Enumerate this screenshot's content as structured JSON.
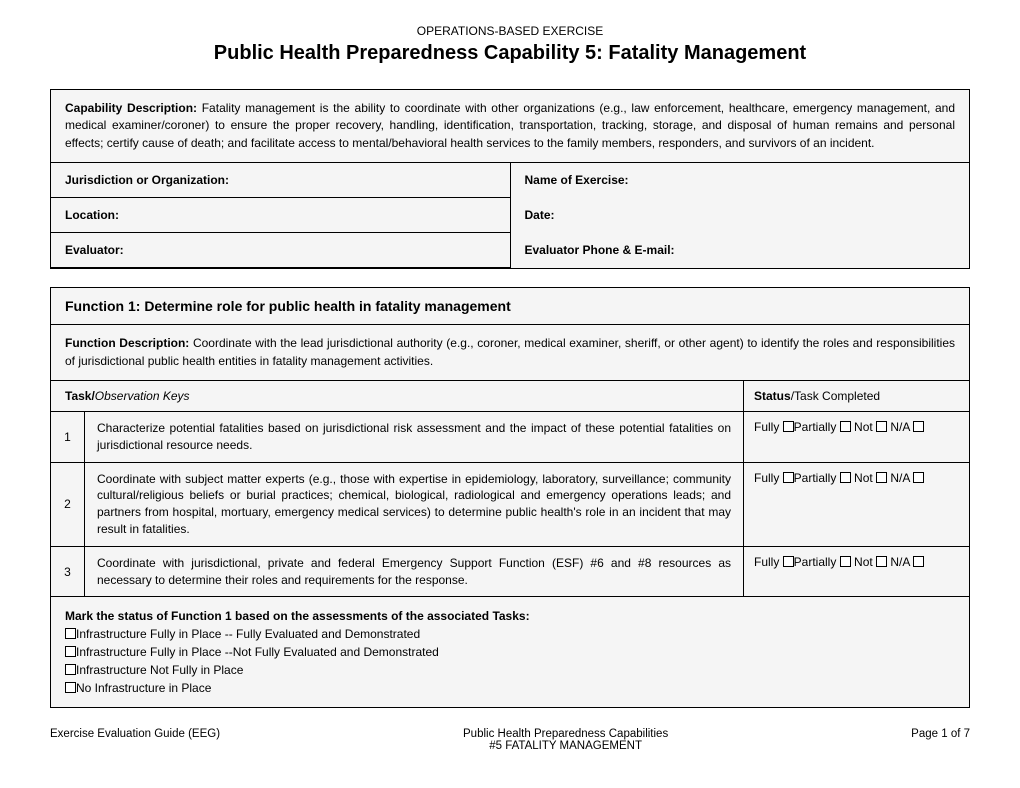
{
  "header": {
    "super": "OPERATIONS-BASED EXERCISE",
    "title": "Public Health Preparedness Capability 5: Fatality Management"
  },
  "capability": {
    "label": "Capability Description:",
    "text": " Fatality management is the ability to coordinate with other organizations (e.g., law enforcement, healthcare, emergency management, and medical examiner/coroner) to ensure the proper recovery, handling, identification, transportation, tracking, storage, and disposal of human remains and personal effects; certify cause of death; and facilitate access to mental/behavioral health services to the family members, responders, and survivors of an incident."
  },
  "fields": {
    "jurisdiction": "Jurisdiction or Organization:",
    "exercise": "Name of Exercise:",
    "location": "Location:",
    "date": "Date:",
    "evaluator": "Evaluator:",
    "evalContact": "Evaluator Phone & E-mail:"
  },
  "function": {
    "title": "Function 1: Determine role for public health in fatality management",
    "descLabel": "Function Description:",
    "descText": " Coordinate with the lead jurisdictional authority (e.g., coroner, medical examiner, sheriff, or other agent) to identify the roles and responsibilities of jurisdictional public health entities in fatality management activities.",
    "taskHeaderBold": "Task/",
    "taskHeaderItalic": "Observation Keys",
    "statusHeaderBold": "Status",
    "statusHeaderRest": "/Task Completed",
    "tasks": [
      {
        "n": "1",
        "text": "Characterize potential fatalities based on jurisdictional risk assessment and the impact of these potential fatalities on jurisdictional resource needs."
      },
      {
        "n": "2",
        "text": "Coordinate with subject matter experts (e.g., those with expertise in epidemiology, laboratory, surveillance; community cultural/religious beliefs or burial practices; chemical, biological, radiological and emergency operations leads; and partners from hospital, mortuary, emergency medical services) to determine public health's role in an incident that may result in fatalities."
      },
      {
        "n": "3",
        "text": "Coordinate with jurisdictional, private and federal Emergency Support Function (ESF) #6 and #8 resources as necessary to determine their roles and requirements for the response."
      }
    ],
    "statusLabels": {
      "fully": "Fully",
      "partially": "Partially",
      "not": "Not",
      "na": "N/A"
    },
    "markHeader": "Mark the status of Function 1 based on the assessments of the associated Tasks:",
    "markOptions": [
      "Infrastructure  Fully in Place -- Fully Evaluated and Demonstrated",
      "Infrastructure  Fully in Place --Not Fully Evaluated and Demonstrated",
      "Infrastructure Not Fully in Place",
      "No Infrastructure in Place"
    ]
  },
  "footer": {
    "left": "Exercise Evaluation Guide (EEG)",
    "centerLine1": "Public Health Preparedness Capabilities",
    "centerLine2": "#5 FATALITY MANAGEMENT",
    "right": "Page 1 of 7"
  }
}
